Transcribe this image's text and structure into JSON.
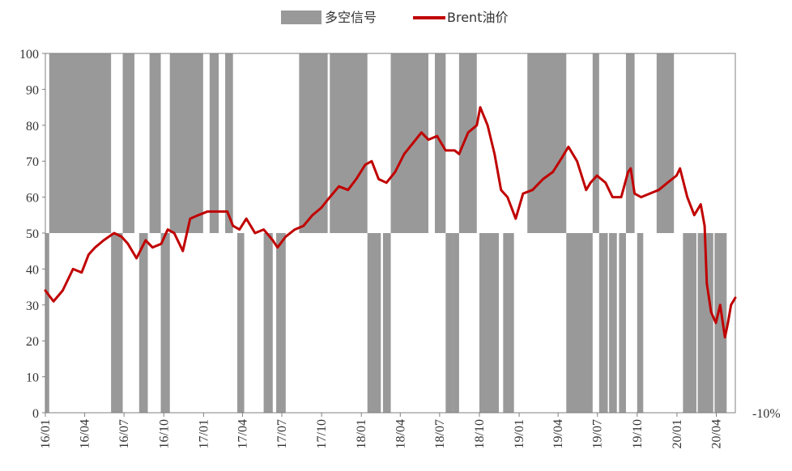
{
  "chart_data": {
    "type": "bar+line",
    "title": "",
    "xlabel": "",
    "ylabel": "",
    "ylim": [
      0,
      100
    ],
    "y_ticks": [
      0,
      10,
      20,
      30,
      40,
      50,
      60,
      70,
      80,
      90,
      100
    ],
    "x_range": [
      "2016-01-01",
      "2020-05-15"
    ],
    "x_ticks": [
      "16/01",
      "16/04",
      "16/07",
      "16/10",
      "17/01",
      "17/04",
      "17/07",
      "17/10",
      "18/01",
      "18/04",
      "18/07",
      "18/10",
      "19/01",
      "19/04",
      "19/07",
      "19/10",
      "20/01",
      "20/04"
    ],
    "x_tick_dates": [
      "2016-01-01",
      "2016-04-01",
      "2016-07-01",
      "2016-10-01",
      "2017-01-01",
      "2017-04-01",
      "2017-07-01",
      "2017-10-01",
      "2018-01-01",
      "2018-04-01",
      "2018-07-01",
      "2018-10-01",
      "2019-01-01",
      "2019-04-01",
      "2019-07-01",
      "2019-10-01",
      "2020-01-01",
      "2020-04-01"
    ],
    "grid": false,
    "legend": "top-center",
    "signal_baseline": 50,
    "extra_label": "-10%",
    "series": [
      {
        "name": "多空信号",
        "kind": "bar",
        "color": "#999999",
        "segments": [
          {
            "start": "2016-01-01",
            "end": "2016-01-10",
            "value": 0
          },
          {
            "start": "2016-01-10",
            "end": "2016-06-01",
            "value": 100
          },
          {
            "start": "2016-06-01",
            "end": "2016-06-28",
            "value": 0
          },
          {
            "start": "2016-06-28",
            "end": "2016-07-25",
            "value": 100
          },
          {
            "start": "2016-08-05",
            "end": "2016-08-25",
            "value": 0
          },
          {
            "start": "2016-08-29",
            "end": "2016-09-24",
            "value": 100
          },
          {
            "start": "2016-09-24",
            "end": "2016-10-15",
            "value": 0
          },
          {
            "start": "2016-10-15",
            "end": "2016-12-31",
            "value": 100
          },
          {
            "start": "2017-01-15",
            "end": "2017-02-05",
            "value": 100
          },
          {
            "start": "2017-02-20",
            "end": "2017-03-10",
            "value": 100
          },
          {
            "start": "2017-03-20",
            "end": "2017-04-05",
            "value": 0
          },
          {
            "start": "2017-05-20",
            "end": "2017-06-10",
            "value": 0
          },
          {
            "start": "2017-06-18",
            "end": "2017-07-10",
            "value": 0
          },
          {
            "start": "2017-08-10",
            "end": "2017-10-15",
            "value": 100
          },
          {
            "start": "2017-10-20",
            "end": "2018-01-15",
            "value": 100
          },
          {
            "start": "2018-01-15",
            "end": "2018-02-15",
            "value": 0
          },
          {
            "start": "2018-02-20",
            "end": "2018-03-10",
            "value": 0
          },
          {
            "start": "2018-03-10",
            "end": "2018-06-05",
            "value": 100
          },
          {
            "start": "2018-06-20",
            "end": "2018-07-15",
            "value": 100
          },
          {
            "start": "2018-07-15",
            "end": "2018-08-01",
            "value": 0
          },
          {
            "start": "2018-08-01",
            "end": "2018-08-15",
            "value": 0
          },
          {
            "start": "2018-08-15",
            "end": "2018-09-25",
            "value": 100
          },
          {
            "start": "2018-10-01",
            "end": "2018-11-15",
            "value": 0
          },
          {
            "start": "2018-11-25",
            "end": "2018-12-20",
            "value": 0
          },
          {
            "start": "2019-01-20",
            "end": "2019-04-20",
            "value": 100
          },
          {
            "start": "2019-04-20",
            "end": "2019-06-20",
            "value": 0
          },
          {
            "start": "2019-06-20",
            "end": "2019-07-05",
            "value": 100
          },
          {
            "start": "2019-07-05",
            "end": "2019-07-25",
            "value": 0
          },
          {
            "start": "2019-07-28",
            "end": "2019-08-15",
            "value": 0
          },
          {
            "start": "2019-08-20",
            "end": "2019-09-05",
            "value": 0
          },
          {
            "start": "2019-09-05",
            "end": "2019-09-25",
            "value": 100
          },
          {
            "start": "2019-10-01",
            "end": "2019-10-15",
            "value": 0
          },
          {
            "start": "2019-11-15",
            "end": "2019-12-25",
            "value": 100
          },
          {
            "start": "2020-01-15",
            "end": "2020-02-15",
            "value": 0
          },
          {
            "start": "2020-02-18",
            "end": "2020-03-25",
            "value": 0
          },
          {
            "start": "2020-03-28",
            "end": "2020-04-25",
            "value": 0
          }
        ]
      },
      {
        "name": "Brent油价",
        "kind": "line",
        "color": "#c00000",
        "x": [
          "2016-01-01",
          "2016-01-20",
          "2016-02-10",
          "2016-03-05",
          "2016-03-25",
          "2016-04-10",
          "2016-04-25",
          "2016-05-15",
          "2016-06-08",
          "2016-06-25",
          "2016-07-10",
          "2016-07-30",
          "2016-08-20",
          "2016-09-05",
          "2016-09-25",
          "2016-10-10",
          "2016-10-25",
          "2016-11-14",
          "2016-12-01",
          "2016-12-20",
          "2017-01-10",
          "2017-02-01",
          "2017-02-25",
          "2017-03-10",
          "2017-03-25",
          "2017-04-10",
          "2017-04-30",
          "2017-05-20",
          "2017-06-10",
          "2017-06-21",
          "2017-07-10",
          "2017-07-31",
          "2017-08-20",
          "2017-09-10",
          "2017-09-30",
          "2017-10-20",
          "2017-11-10",
          "2017-12-01",
          "2017-12-20",
          "2018-01-10",
          "2018-01-25",
          "2018-02-10",
          "2018-02-28",
          "2018-03-20",
          "2018-04-10",
          "2018-04-30",
          "2018-05-20",
          "2018-06-05",
          "2018-06-25",
          "2018-07-15",
          "2018-08-05",
          "2018-08-15",
          "2018-09-05",
          "2018-09-25",
          "2018-10-03",
          "2018-10-20",
          "2018-11-05",
          "2018-11-20",
          "2018-12-05",
          "2018-12-24",
          "2019-01-10",
          "2019-02-01",
          "2019-02-25",
          "2019-03-20",
          "2019-04-10",
          "2019-04-25",
          "2019-05-15",
          "2019-06-05",
          "2019-06-15",
          "2019-06-30",
          "2019-07-20",
          "2019-08-05",
          "2019-08-25",
          "2019-09-10",
          "2019-09-16",
          "2019-09-25",
          "2019-10-10",
          "2019-10-30",
          "2019-11-20",
          "2019-12-10",
          "2019-12-31",
          "2020-01-08",
          "2020-01-25",
          "2020-02-10",
          "2020-02-25",
          "2020-03-05",
          "2020-03-10",
          "2020-03-20",
          "2020-03-31",
          "2020-04-10",
          "2020-04-21",
          "2020-04-28",
          "2020-05-05",
          "2020-05-15"
        ],
        "values": [
          34,
          31,
          34,
          40,
          39,
          44,
          46,
          48,
          50,
          49,
          47,
          43,
          48,
          46,
          47,
          51,
          50,
          45,
          54,
          55,
          56,
          56,
          56,
          52,
          51,
          54,
          50,
          51,
          48,
          46,
          49,
          51,
          52,
          55,
          57,
          60,
          63,
          62,
          65,
          69,
          70,
          65,
          64,
          67,
          72,
          75,
          78,
          76,
          77,
          73,
          73,
          72,
          78,
          80,
          85,
          80,
          72,
          62,
          60,
          54,
          61,
          62,
          65,
          67,
          71,
          74,
          70,
          62,
          64,
          66,
          64,
          60,
          60,
          67,
          68,
          61,
          60,
          61,
          62,
          64,
          66,
          68,
          60,
          55,
          58,
          52,
          36,
          28,
          25,
          30,
          21,
          25,
          30,
          32
        ]
      }
    ]
  }
}
